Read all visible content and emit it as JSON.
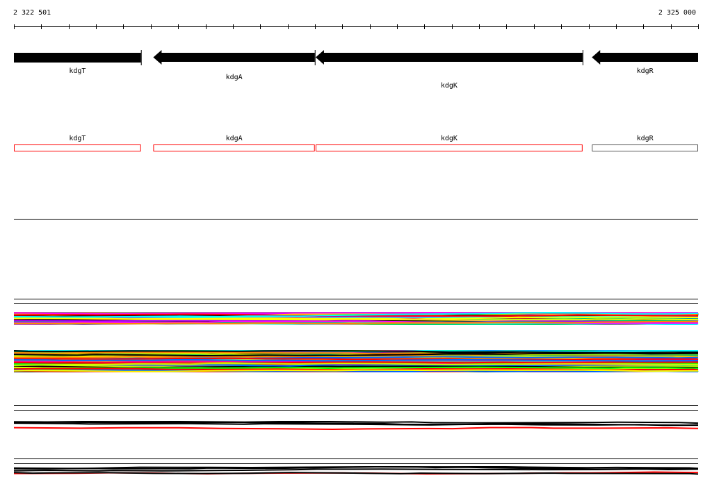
{
  "ruler": {
    "start_label": "2 322 501",
    "end_label": "2 325 000"
  },
  "genes": [
    {
      "name": "kdgT",
      "strand": "+",
      "start": 2322501,
      "end": 2322965
    },
    {
      "name": "kdgA",
      "strand": "-",
      "start": 2323010,
      "end": 2323600
    },
    {
      "name": "kdgK",
      "strand": "-",
      "start": 2323603,
      "end": 2324578
    },
    {
      "name": "kdgR",
      "strand": "-",
      "start": 2324612,
      "end": 2325000
    }
  ],
  "annotation_boxes": [
    {
      "name": "kdgT",
      "color": "#ff0000"
    },
    {
      "name": "kdgA",
      "color": "#ff0000"
    },
    {
      "name": "kdgK",
      "color": "#ff0000"
    },
    {
      "name": "kdgR",
      "color": "#555555"
    }
  ],
  "track_colors": [
    "#ff00ff",
    "#00ff00",
    "#0066ff",
    "#ff0000",
    "#00ffff",
    "#ffff00",
    "#ff8800",
    "#888888",
    "#aa00ff",
    "#ccff00",
    "#000000",
    "#ff0099",
    "#00cc66"
  ]
}
